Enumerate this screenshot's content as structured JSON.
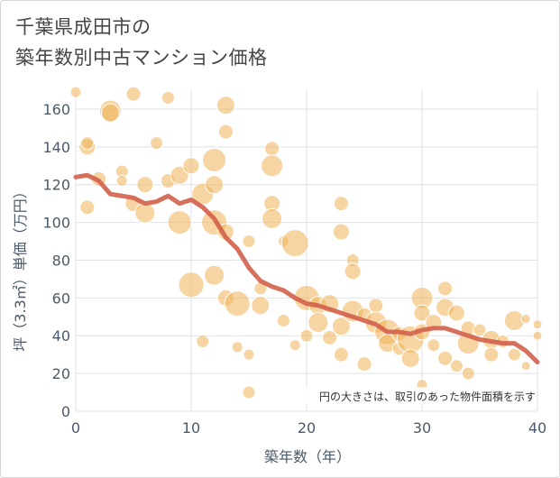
{
  "title_line1": "千葉県成田市の",
  "title_line2": "築年数別中古マンション価格",
  "chart_data": {
    "type": "scatter",
    "xlabel": "築年数（年）",
    "ylabel": "坪（3.3㎡）単価（万円）",
    "xlim": [
      0,
      40
    ],
    "ylim": [
      0,
      170
    ],
    "x_ticks": [
      0,
      10,
      20,
      30,
      40
    ],
    "y_ticks": [
      0,
      20,
      40,
      60,
      80,
      100,
      120,
      140,
      160
    ],
    "grid": true,
    "annotation": "円の大きさは、取引のあった物件面積を示す",
    "colors": {
      "bubble": "#f0b357",
      "trend": "#d2604a",
      "grid": "#dde1e4",
      "axis_text": "#4a5a6a"
    },
    "trend_line": {
      "x": [
        0,
        1,
        2,
        3,
        4,
        5,
        6,
        7,
        8,
        9,
        10,
        11,
        12,
        13,
        14,
        15,
        16,
        17,
        18,
        19,
        20,
        21,
        22,
        23,
        24,
        25,
        26,
        27,
        28,
        29,
        30,
        31,
        32,
        33,
        34,
        35,
        36,
        37,
        38,
        39,
        40
      ],
      "y": [
        124,
        125,
        122,
        115,
        114,
        113,
        110,
        111,
        114,
        110,
        112,
        108,
        102,
        92,
        86,
        76,
        69,
        66,
        64,
        60,
        57,
        56,
        54,
        52,
        50,
        48,
        46,
        42,
        42,
        41,
        43,
        44,
        44,
        42,
        40,
        38,
        37,
        36,
        36,
        32,
        26
      ]
    },
    "bubbles": [
      [
        0,
        169,
        6
      ],
      [
        1,
        140,
        9
      ],
      [
        1,
        142,
        7
      ],
      [
        1,
        108,
        8
      ],
      [
        2,
        123,
        8
      ],
      [
        3,
        159,
        12
      ],
      [
        3,
        158,
        10
      ],
      [
        4,
        127,
        7
      ],
      [
        4,
        122,
        6
      ],
      [
        5,
        168,
        8
      ],
      [
        5,
        110,
        9
      ],
      [
        6,
        120,
        9
      ],
      [
        6,
        105,
        11
      ],
      [
        7,
        142,
        7
      ],
      [
        8,
        166,
        7
      ],
      [
        8,
        122,
        8
      ],
      [
        9,
        125,
        10
      ],
      [
        9,
        100,
        13
      ],
      [
        10,
        130,
        9
      ],
      [
        10,
        67,
        14
      ],
      [
        11,
        37,
        7
      ],
      [
        11,
        115,
        12
      ],
      [
        12,
        133,
        13
      ],
      [
        12,
        120,
        10
      ],
      [
        12,
        72,
        11
      ],
      [
        12,
        100,
        14
      ],
      [
        13,
        95,
        9
      ],
      [
        13,
        148,
        8
      ],
      [
        13,
        162,
        10
      ],
      [
        13,
        60,
        9
      ],
      [
        14,
        57,
        14
      ],
      [
        14,
        34,
        6
      ],
      [
        15,
        30,
        6
      ],
      [
        15,
        90,
        7
      ],
      [
        15,
        10,
        7
      ],
      [
        16,
        65,
        7
      ],
      [
        16,
        56,
        10
      ],
      [
        17,
        139,
        8
      ],
      [
        17,
        130,
        12
      ],
      [
        17,
        110,
        9
      ],
      [
        17,
        102,
        11
      ],
      [
        18,
        90,
        6
      ],
      [
        18,
        48,
        7
      ],
      [
        19,
        89,
        15
      ],
      [
        19,
        35,
        6
      ],
      [
        20,
        60,
        14
      ],
      [
        20,
        40,
        7
      ],
      [
        21,
        56,
        10
      ],
      [
        21,
        47,
        11
      ],
      [
        22,
        39,
        8
      ],
      [
        22,
        57,
        10
      ],
      [
        23,
        110,
        8
      ],
      [
        23,
        95,
        9
      ],
      [
        23,
        45,
        10
      ],
      [
        23,
        30,
        8
      ],
      [
        24,
        80,
        7
      ],
      [
        24,
        74,
        9
      ],
      [
        24,
        53,
        12
      ],
      [
        25,
        51,
        8
      ],
      [
        25,
        25,
        8
      ],
      [
        26,
        56,
        8
      ],
      [
        26,
        47,
        12
      ],
      [
        27,
        42,
        14
      ],
      [
        27,
        36,
        10
      ],
      [
        28,
        41,
        8
      ],
      [
        28,
        33,
        7
      ],
      [
        29,
        38,
        15
      ],
      [
        29,
        28,
        10
      ],
      [
        30,
        60,
        12
      ],
      [
        30,
        52,
        9
      ],
      [
        30,
        42,
        9
      ],
      [
        30,
        14,
        6
      ],
      [
        31,
        47,
        9
      ],
      [
        31,
        35,
        7
      ],
      [
        32,
        65,
        8
      ],
      [
        32,
        55,
        10
      ],
      [
        32,
        28,
        8
      ],
      [
        33,
        52,
        9
      ],
      [
        33,
        24,
        7
      ],
      [
        34,
        36,
        12
      ],
      [
        34,
        44,
        8
      ],
      [
        34,
        20,
        7
      ],
      [
        35,
        43,
        7
      ],
      [
        36,
        38,
        10
      ],
      [
        36,
        30,
        8
      ],
      [
        37,
        37,
        7
      ],
      [
        38,
        48,
        11
      ],
      [
        38,
        30,
        7
      ],
      [
        39,
        49,
        5
      ],
      [
        39,
        24,
        5
      ],
      [
        40,
        46,
        5
      ],
      [
        40,
        40,
        5
      ]
    ]
  }
}
